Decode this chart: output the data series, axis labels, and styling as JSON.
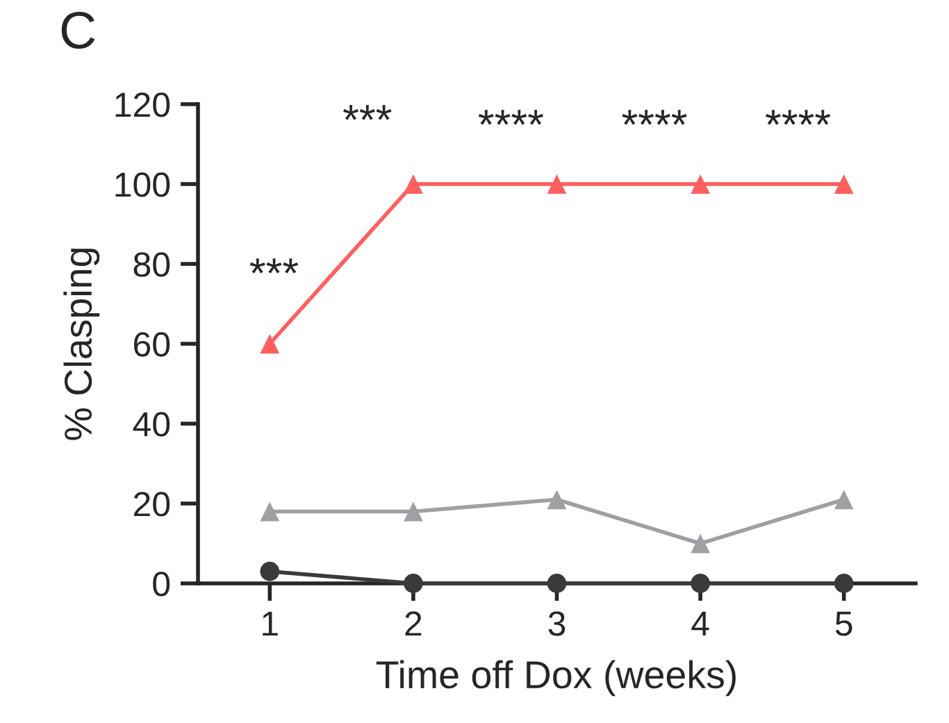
{
  "chart_data": {
    "type": "line",
    "xlabel": "Time off Dox (weeks)",
    "ylabel": "% Clasping",
    "x": [
      1,
      2,
      3,
      4,
      5
    ],
    "xlim": [
      0.5,
      5.5
    ],
    "xticks": [
      1,
      2,
      3,
      4,
      5
    ],
    "ylim": [
      0,
      120
    ],
    "yticks": [
      0,
      20,
      40,
      60,
      80,
      100,
      120
    ],
    "grid": false,
    "legend": false,
    "line_style": "solid",
    "series": [
      {
        "color": "#ff5f5f",
        "marker": "triangle",
        "values": [
          60,
          100,
          100,
          100,
          100
        ]
      },
      {
        "color": "#a0a0a4",
        "marker": "triangle",
        "values": [
          18,
          18,
          21,
          10,
          21
        ]
      },
      {
        "color": "#3a3a3a",
        "marker": "circle",
        "values": [
          3,
          0,
          0,
          0,
          0
        ]
      }
    ],
    "annotations": [
      "C",
      "***",
      "***",
      "****",
      "****",
      "****"
    ]
  }
}
